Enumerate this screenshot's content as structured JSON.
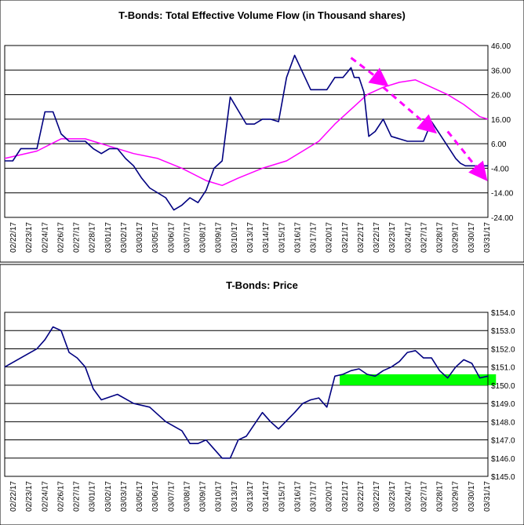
{
  "chart_data": [
    {
      "type": "line",
      "title": "T-Bonds: Total Effective Volume Flow (in Thousand shares)",
      "xlabel": "",
      "ylabel": "",
      "ylim": [
        -24,
        46
      ],
      "y_ticks": [
        "46.00",
        "36.00",
        "26.00",
        "16.00",
        "6.00",
        "-4.00",
        "-14.00",
        "-24.00"
      ],
      "x_tick_labels": [
        "02/22/17",
        "02/23/17",
        "02/24/17",
        "02/26/17",
        "02/27/17",
        "02/28/17",
        "03/01/17",
        "03/02/17",
        "03/03/17",
        "03/05/17",
        "03/06/17",
        "03/07/17",
        "03/08/17",
        "03/09/17",
        "03/10/17",
        "03/13/17",
        "03/14/17",
        "03/15/17",
        "03/16/17",
        "03/17/17",
        "03/20/17",
        "03/21/17",
        "03/22/17",
        "03/22/17",
        "03/23/17",
        "03/24/17",
        "03/27/17",
        "03/28/17",
        "03/29/17",
        "03/30/17",
        "03/31/17"
      ],
      "grid": "horizontal",
      "series": [
        {
          "color": "#000080",
          "x": [
            0,
            0.5,
            1,
            2,
            2.5,
            3,
            3.5,
            4,
            5,
            5.5,
            6,
            6.5,
            7,
            7.5,
            8,
            8.5,
            9,
            10,
            10.5,
            11,
            11.5,
            12,
            12.5,
            13,
            13.5,
            14,
            15,
            15.5,
            16,
            16.5,
            17,
            17.5,
            18,
            19,
            20,
            20.5,
            21,
            21.5,
            21.7,
            22,
            22.3,
            22.6,
            23,
            23.5,
            24,
            25,
            26,
            26.5,
            27,
            27.5,
            28,
            28.3,
            28.6,
            29,
            29.3,
            29.6,
            30
          ],
          "values": [
            -1,
            -1,
            4,
            4,
            19,
            19,
            10,
            7,
            7,
            4,
            2,
            4,
            4,
            0,
            -3,
            -8,
            -12,
            -16,
            -21,
            -19,
            -16,
            -18,
            -13,
            -4,
            -1,
            25,
            14,
            14,
            16,
            16,
            15,
            33,
            42,
            28,
            28,
            33,
            33,
            37,
            33,
            33,
            27,
            9,
            11,
            16,
            9,
            7,
            7,
            15,
            10,
            5,
            0,
            -2,
            -3,
            -3,
            -3,
            -3,
            -3
          ]
        },
        {
          "color": "#ff00ff",
          "x": [
            0,
            2,
            3.5,
            5,
            6.5,
            8,
            9.5,
            11,
            12.5,
            13.5,
            14.5,
            16,
            17.5,
            18.5,
            19.5,
            20.5,
            21.5,
            22.5,
            23.5,
            24.5,
            25.5,
            26.5,
            27.5,
            28.5,
            29.5,
            30
          ],
          "values": [
            0,
            3,
            8,
            8,
            5,
            2,
            0,
            -4,
            -9,
            -11,
            -8,
            -4,
            -1,
            3,
            7,
            14,
            20,
            26,
            29,
            31,
            32,
            29,
            26,
            22,
            17,
            16
          ]
        }
      ],
      "annotations": [
        {
          "type": "dashed-arrow",
          "color": "#ff00ff",
          "from": [
            21.5,
            41
          ],
          "to": [
            23.5,
            31
          ]
        },
        {
          "type": "dashed-arrow",
          "color": "#ff00ff",
          "from": [
            23.5,
            29
          ],
          "to": [
            26.5,
            12
          ]
        },
        {
          "type": "dashed-arrow",
          "color": "#ff00ff",
          "from": [
            27.5,
            11
          ],
          "to": [
            29.7,
            -7
          ]
        }
      ]
    },
    {
      "type": "line",
      "title": "T-Bonds: Price",
      "xlabel": "",
      "ylabel": "",
      "ylim": [
        145,
        154
      ],
      "y_ticks": [
        "$154.0",
        "$153.0",
        "$152.0",
        "$151.0",
        "$150.0",
        "$149.0",
        "$148.0",
        "$147.0",
        "$146.0",
        "$145.0"
      ],
      "x_tick_labels": [
        "02/22/17",
        "02/23/17",
        "02/24/17",
        "02/26/17",
        "02/27/17",
        "03/01/17",
        "03/02/17",
        "03/03/17",
        "03/05/17",
        "03/06/17",
        "03/07/17",
        "03/08/17",
        "03/09/17",
        "03/10/17",
        "03/13/17",
        "03/13/17",
        "03/14/17",
        "03/15/17",
        "03/16/17",
        "03/17/17",
        "03/20/17",
        "03/21/17",
        "03/22/17",
        "03/22/17",
        "03/23/17",
        "03/24/17",
        "03/27/17",
        "03/28/17",
        "03/29/17",
        "03/30/17",
        "03/31/17"
      ],
      "grid": "horizontal",
      "series": [
        {
          "color": "#000080",
          "x": [
            0,
            1,
            2,
            2.5,
            3,
            3.5,
            4,
            4.5,
            5,
            5.5,
            6,
            7,
            8,
            9,
            10,
            11,
            11.5,
            12,
            12.5,
            13,
            13.5,
            14,
            14.5,
            15,
            16,
            16.5,
            17,
            18,
            18.5,
            19,
            19.5,
            20,
            20.5,
            21,
            21.5,
            22,
            22.5,
            23,
            23.5,
            24,
            24.5,
            25,
            25.5,
            26,
            26.5,
            27,
            27.5,
            28,
            28.5,
            29,
            29.5,
            30
          ],
          "values": [
            151,
            151.5,
            152,
            152.5,
            153.2,
            153,
            151.8,
            151.5,
            151,
            149.8,
            149.2,
            149.5,
            149,
            148.8,
            148,
            147.5,
            146.8,
            146.8,
            147,
            146.5,
            146,
            146,
            147,
            147.2,
            148.5,
            148,
            147.6,
            148.5,
            149,
            149.2,
            149.3,
            148.8,
            150.5,
            150.6,
            150.8,
            150.9,
            150.6,
            150.5,
            150.8,
            151.0,
            151.3,
            151.8,
            151.9,
            151.5,
            151.5,
            150.8,
            150.4,
            151,
            151.4,
            151.2,
            150.4,
            150.5
          ]
        }
      ],
      "support_band": {
        "color": "#00ff00",
        "from_x": 20.8,
        "to_x": 30.5,
        "low": 150.0,
        "high": 150.6
      }
    }
  ]
}
